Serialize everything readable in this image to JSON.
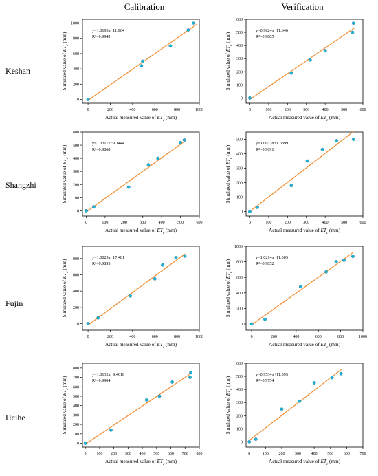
{
  "headers": {
    "calibration": "Calibration",
    "verification": "Verification"
  },
  "rows": [
    "Keshan",
    "Shangzhi",
    "Fujin",
    "Heihe"
  ],
  "style": {
    "point_color": "#1ab5d8",
    "point_stroke": "#2f6f8a",
    "line_color": "#f08a2c",
    "axis_color": "#000000"
  },
  "chart_data": [
    {
      "type": "scatter",
      "region": "Keshan",
      "set": "Calibration",
      "xlabel": "Actual measured value of ET_c (mm)",
      "ylabel": "Simulated value of ET_c (mm)",
      "equation": "y=1.0193x−11.964",
      "r2": "R²=0.9949",
      "xlim": [
        -50,
        1000
      ],
      "ylim": [
        -50,
        1050
      ],
      "xticks": [
        0,
        200,
        400,
        600,
        800,
        1000
      ],
      "yticks": [
        0,
        200,
        400,
        600,
        800,
        1000
      ],
      "fit": {
        "slope": 1.0193,
        "intercept": -11.964,
        "x_range": [
          0,
          980
        ]
      },
      "points": [
        [
          0,
          0
        ],
        [
          480,
          440
        ],
        [
          490,
          500
        ],
        [
          740,
          700
        ],
        [
          900,
          910
        ],
        [
          950,
          1000
        ]
      ]
    },
    {
      "type": "scatter",
      "region": "Keshan",
      "set": "Verification",
      "xlabel": "Actual measured value of ET_c (mm)",
      "ylabel": "Simulated value of ET_c (mm)",
      "equation": "y=0.9824x−11.646",
      "r2": "R²=0.9885",
      "xlim": [
        -20,
        600
      ],
      "ylim": [
        -40,
        600
      ],
      "xticks": [
        0,
        100,
        200,
        300,
        400,
        500,
        600
      ],
      "yticks": [
        0,
        100,
        200,
        300,
        400,
        500,
        600
      ],
      "fit": {
        "slope": 0.9824,
        "intercept": -11.646,
        "x_range": [
          0,
          555
        ]
      },
      "points": [
        [
          0,
          0
        ],
        [
          220,
          190
        ],
        [
          320,
          290
        ],
        [
          400,
          360
        ],
        [
          545,
          500
        ],
        [
          550,
          570
        ]
      ]
    },
    {
      "type": "scatter",
      "region": "Shangzhi",
      "set": "Calibration",
      "xlabel": "Actual measured value of ET_c (mm)",
      "ylabel": "Simulated value of ET_c (mm)",
      "equation": "y=1.0311x−9.1444",
      "r2": "R²=0.9868",
      "xlim": [
        -20,
        600
      ],
      "ylim": [
        -40,
        600
      ],
      "xticks": [
        0,
        100,
        200,
        300,
        400,
        500,
        600
      ],
      "yticks": [
        0,
        100,
        200,
        300,
        400,
        500,
        600
      ],
      "fit": {
        "slope": 1.0311,
        "intercept": -9.1444,
        "x_range": [
          0,
          530
        ]
      },
      "points": [
        [
          0,
          0
        ],
        [
          40,
          30
        ],
        [
          225,
          180
        ],
        [
          330,
          350
        ],
        [
          380,
          400
        ],
        [
          500,
          520
        ],
        [
          520,
          540
        ]
      ]
    },
    {
      "type": "scatter",
      "region": "Shangzhi",
      "set": "Verification",
      "xlabel": "Actual measured value of ET_c (mm)",
      "ylabel": "Simulated value of ET_c (mm)",
      "equation": "y=1.0033x+1.6899",
      "r2": "R²=0.9691",
      "xlim": [
        -20,
        600
      ],
      "ylim": [
        -30,
        550
      ],
      "xticks": [
        0,
        100,
        200,
        300,
        400,
        500,
        600
      ],
      "yticks": [
        0,
        100,
        200,
        300,
        400,
        500
      ],
      "fit": {
        "slope": 1.0033,
        "intercept": 1.6899,
        "x_range": [
          0,
          550
        ]
      },
      "points": [
        [
          0,
          0
        ],
        [
          40,
          30
        ],
        [
          220,
          180
        ],
        [
          305,
          350
        ],
        [
          385,
          430
        ],
        [
          460,
          490
        ],
        [
          550,
          500
        ]
      ]
    },
    {
      "type": "scatter",
      "region": "Fujin",
      "set": "Calibration",
      "xlabel": "Actual measured value of ET_c (mm)",
      "ylabel": "Simulated value of ET_c (mm)",
      "equation": "y=1.0029x−17.481",
      "r2": "R²=0.9895",
      "xlim": [
        -50,
        1000
      ],
      "ylim": [
        -80,
        950
      ],
      "xticks": [
        0,
        200,
        400,
        600,
        800,
        1000
      ],
      "yticks": [
        0,
        200,
        400,
        600,
        800
      ],
      "fit": {
        "slope": 1.0029,
        "intercept": -17.481,
        "x_range": [
          0,
          870
        ]
      },
      "points": [
        [
          0,
          0
        ],
        [
          90,
          70
        ],
        [
          380,
          340
        ],
        [
          600,
          550
        ],
        [
          670,
          720
        ],
        [
          790,
          810
        ],
        [
          870,
          830
        ]
      ]
    },
    {
      "type": "scatter",
      "region": "Fujin",
      "set": "Verification",
      "xlabel": "Actual measured value of ET_c (mm)",
      "ylabel": "Simulated value of ET_c (mm)",
      "equation": "y=1.0214x−11.305",
      "r2": "R²=0.9852",
      "xlim": [
        -50,
        1000
      ],
      "ylim": [
        -80,
        1000
      ],
      "xticks": [
        0,
        200,
        400,
        600,
        800,
        1000
      ],
      "yticks": [
        0,
        200,
        400,
        600,
        800,
        1000
      ],
      "fit": {
        "slope": 1.0214,
        "intercept": -11.305,
        "x_range": [
          0,
          910
        ]
      },
      "points": [
        [
          0,
          0
        ],
        [
          120,
          60
        ],
        [
          440,
          480
        ],
        [
          670,
          670
        ],
        [
          760,
          800
        ],
        [
          830,
          820
        ],
        [
          910,
          870
        ]
      ]
    },
    {
      "type": "scatter",
      "region": "Heihe",
      "set": "Calibration",
      "xlabel": "Actual measured value of ET_c (mm)",
      "ylabel": "Simulated value of ET_c (mm)",
      "equation": "y=1.0132x−9.4618",
      "r2": "R²=0.9904",
      "xlim": [
        -20,
        800
      ],
      "ylim": [
        -40,
        850
      ],
      "xticks": [
        0,
        100,
        200,
        300,
        400,
        500,
        600,
        700,
        800
      ],
      "yticks": [
        0,
        100,
        200,
        300,
        400,
        500,
        600,
        700,
        800
      ],
      "fit": {
        "slope": 1.0132,
        "intercept": -9.4618,
        "x_range": [
          0,
          740
        ]
      },
      "points": [
        [
          0,
          0
        ],
        [
          180,
          140
        ],
        [
          430,
          460
        ],
        [
          520,
          500
        ],
        [
          610,
          650
        ],
        [
          735,
          700
        ],
        [
          740,
          750
        ]
      ]
    },
    {
      "type": "scatter",
      "region": "Heihe",
      "set": "Verification",
      "xlabel": "Actual measured value of ET_c (mm)",
      "ylabel": "Simulated value of ET_c (mm)",
      "equation": "y=0.9534x+11.595",
      "r2": "R²=0.9754",
      "xlim": [
        -20,
        700
      ],
      "ylim": [
        -40,
        600
      ],
      "xticks": [
        0,
        100,
        200,
        300,
        400,
        500,
        600,
        700
      ],
      "yticks": [
        0,
        100,
        200,
        300,
        400,
        500,
        600
      ],
      "fit": {
        "slope": 0.9534,
        "intercept": 11.595,
        "x_range": [
          0,
          570
        ]
      },
      "points": [
        [
          0,
          0
        ],
        [
          40,
          20
        ],
        [
          200,
          250
        ],
        [
          310,
          310
        ],
        [
          400,
          450
        ],
        [
          510,
          490
        ],
        [
          565,
          520
        ]
      ]
    }
  ]
}
